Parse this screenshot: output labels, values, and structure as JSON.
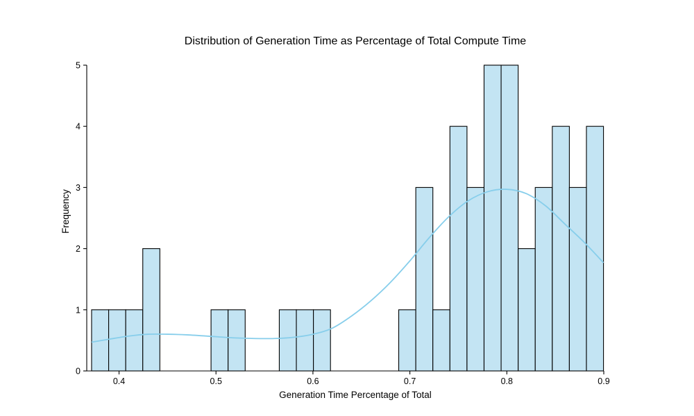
{
  "chart_data": {
    "type": "bar",
    "subtype": "histogram",
    "title": "Distribution of Generation Time as Percentage of Total Compute Time",
    "xlabel": "Generation Time Percentage of Total",
    "ylabel": "Frequency",
    "xlim": [
      0.3667,
      0.9
    ],
    "ylim": [
      0,
      5
    ],
    "x_ticks": [
      0.4,
      0.5,
      0.6,
      0.7,
      0.8,
      0.9
    ],
    "x_tick_labels": [
      "0.4",
      "0.5",
      "0.6",
      "0.7",
      "0.8",
      "0.9"
    ],
    "y_ticks": [
      0,
      1,
      2,
      3,
      4,
      5
    ],
    "y_tick_labels": [
      "0",
      "1",
      "2",
      "3",
      "4",
      "5"
    ],
    "bin_edges": [
      0.3717,
      0.3893,
      0.4069,
      0.4245,
      0.4421,
      0.4597,
      0.4773,
      0.4949,
      0.5125,
      0.5301,
      0.5477,
      0.5653,
      0.5829,
      0.6005,
      0.6181,
      0.6357,
      0.6533,
      0.6709,
      0.6885,
      0.7061,
      0.7237,
      0.7413,
      0.7589,
      0.7765,
      0.7941,
      0.8117,
      0.8293,
      0.8469,
      0.8645,
      0.8821,
      0.8997
    ],
    "counts": [
      1,
      1,
      1,
      2,
      0,
      0,
      0,
      1,
      1,
      0,
      0,
      1,
      1,
      1,
      0,
      0,
      0,
      0,
      1,
      3,
      1,
      4,
      3,
      5,
      5,
      2,
      3,
      4,
      3,
      4
    ],
    "kde": {
      "x": [
        0.3717,
        0.39,
        0.41,
        0.43,
        0.45,
        0.47,
        0.5,
        0.52,
        0.54,
        0.56,
        0.58,
        0.6,
        0.62,
        0.64,
        0.66,
        0.68,
        0.7,
        0.72,
        0.74,
        0.76,
        0.78,
        0.8,
        0.82,
        0.84,
        0.86,
        0.88,
        0.8997
      ],
      "y": [
        0.47,
        0.52,
        0.57,
        0.6,
        0.6,
        0.59,
        0.56,
        0.54,
        0.53,
        0.53,
        0.55,
        0.6,
        0.7,
        0.9,
        1.15,
        1.45,
        1.8,
        2.18,
        2.52,
        2.78,
        2.93,
        2.97,
        2.9,
        2.7,
        2.4,
        2.1,
        1.77
      ]
    },
    "grid": false,
    "colors": {
      "bar_fill": "#c3e4f3",
      "bar_edge": "#000000",
      "kde_line": "#87ceeb"
    }
  }
}
